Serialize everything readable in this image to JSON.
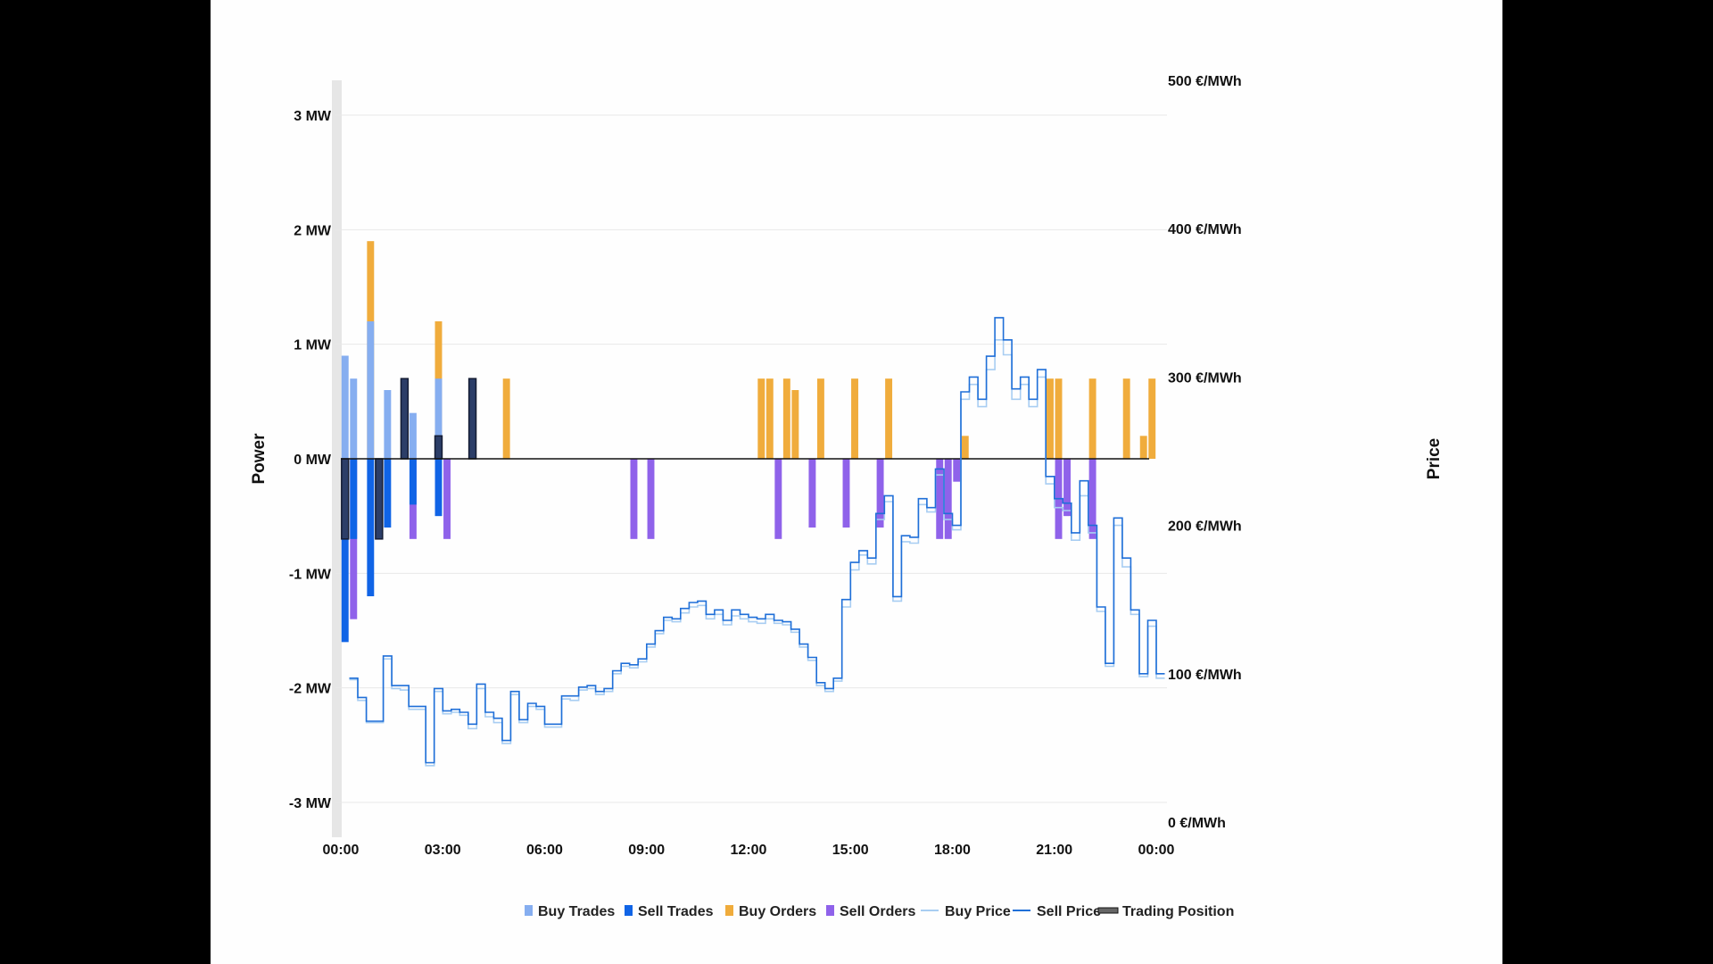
{
  "chart_data": {
    "type": "bar",
    "left_axis": {
      "title": "Power",
      "range": [
        -3,
        3
      ],
      "ticks": [
        3,
        2,
        1,
        0,
        -1,
        -2,
        -3
      ],
      "tick_labels": [
        "3 MW",
        "2 MW",
        "1 MW",
        "0 MW",
        "-1 MW",
        "-2 MW",
        "-3 MW"
      ]
    },
    "right_axis": {
      "title": "Price",
      "range": [
        0,
        500
      ],
      "ticks": [
        500,
        400,
        300,
        200,
        100,
        0
      ],
      "tick_labels": [
        "500 €/MWh",
        "400 €/MWh",
        "300 €/MWh",
        "200 €/MWh",
        "100 €/MWh",
        "0 €/MWh"
      ]
    },
    "x_axis": {
      "range_hours": [
        0,
        24
      ],
      "ticks": [
        0,
        3,
        6,
        9,
        12,
        15,
        18,
        21,
        24
      ],
      "tick_labels": [
        "00:00",
        "03:00",
        "06:00",
        "09:00",
        "12:00",
        "15:00",
        "18:00",
        "21:00",
        "00:00"
      ]
    },
    "grid": true,
    "legend_position": "bottom",
    "bar_width_hours": 0.25,
    "colors": {
      "buy_trades": "#86aef0",
      "sell_trades": "#1064e6",
      "buy_orders": "#f0ac3c",
      "sell_orders": "#8f62ea",
      "buy_price": "#a8cdf2",
      "sell_price": "#1f6fd8",
      "trading_position": "#2c3e68",
      "zero_line": "#111111",
      "grid": "#e8e8e8"
    },
    "legend": [
      {
        "key": "buy_trades",
        "label": "Buy Trades",
        "kind": "bar"
      },
      {
        "key": "sell_trades",
        "label": "Sell Trades",
        "kind": "bar"
      },
      {
        "key": "buy_orders",
        "label": "Buy Orders",
        "kind": "bar"
      },
      {
        "key": "sell_orders",
        "label": "Sell Orders",
        "kind": "bar"
      },
      {
        "key": "buy_price",
        "label": "Buy Price",
        "kind": "line"
      },
      {
        "key": "sell_price",
        "label": "Sell Price",
        "kind": "line"
      },
      {
        "key": "trading_position",
        "label": "Trading Position",
        "kind": "position"
      }
    ],
    "buy_trades": [
      {
        "t": 0.0,
        "v": 0.9
      },
      {
        "t": 0.25,
        "v": 0.7
      },
      {
        "t": 0.75,
        "v": 1.2
      },
      {
        "t": 1.25,
        "v": 0.6
      },
      {
        "t": 2.0,
        "v": 0.4
      },
      {
        "t": 2.75,
        "v": 0.7
      }
    ],
    "sell_trades": [
      {
        "t": 0.0,
        "v": -1.6
      },
      {
        "t": 0.25,
        "v": -0.7
      },
      {
        "t": 0.75,
        "v": -1.2
      },
      {
        "t": 1.25,
        "v": -0.6
      },
      {
        "t": 2.0,
        "v": -0.4
      },
      {
        "t": 2.75,
        "v": -0.5
      }
    ],
    "buy_orders": [
      {
        "t": 0.75,
        "v": 1.9
      },
      {
        "t": 2.75,
        "v": 1.2
      },
      {
        "t": 4.75,
        "v": 0.7
      },
      {
        "t": 12.25,
        "v": 0.7
      },
      {
        "t": 12.5,
        "v": 0.7
      },
      {
        "t": 13.0,
        "v": 0.7
      },
      {
        "t": 13.25,
        "v": 0.6
      },
      {
        "t": 14.0,
        "v": 0.7
      },
      {
        "t": 15.0,
        "v": 0.7
      },
      {
        "t": 16.0,
        "v": 0.7
      },
      {
        "t": 18.25,
        "v": 0.2
      },
      {
        "t": 20.75,
        "v": 0.7
      },
      {
        "t": 21.0,
        "v": 0.7
      },
      {
        "t": 22.0,
        "v": 0.7
      },
      {
        "t": 23.0,
        "v": 0.7
      },
      {
        "t": 23.5,
        "v": 0.2
      },
      {
        "t": 23.75,
        "v": 0.7
      }
    ],
    "sell_orders": [
      {
        "t": 0.25,
        "v": -1.4
      },
      {
        "t": 2.0,
        "v": -0.7
      },
      {
        "t": 3.0,
        "v": -0.7
      },
      {
        "t": 8.5,
        "v": -0.7
      },
      {
        "t": 9.0,
        "v": -0.7
      },
      {
        "t": 12.75,
        "v": -0.7
      },
      {
        "t": 13.75,
        "v": -0.6
      },
      {
        "t": 14.75,
        "v": -0.6
      },
      {
        "t": 15.75,
        "v": -0.6
      },
      {
        "t": 17.5,
        "v": -0.7
      },
      {
        "t": 17.75,
        "v": -0.7
      },
      {
        "t": 18.0,
        "v": -0.2
      },
      {
        "t": 21.0,
        "v": -0.7
      },
      {
        "t": 21.25,
        "v": -0.5
      },
      {
        "t": 22.0,
        "v": -0.7
      }
    ],
    "trading_position": [
      {
        "t": 0.0,
        "v": -0.7
      },
      {
        "t": 1.0,
        "v": -0.7
      },
      {
        "t": 1.75,
        "v": 0.7
      },
      {
        "t": 2.75,
        "v": 0.2
      },
      {
        "t": 3.75,
        "v": 0.7
      }
    ],
    "sell_price": {
      "start_hours": 0.25,
      "step_hours": 0.25,
      "values": [
        97,
        84,
        68,
        68,
        112,
        92,
        92,
        78,
        78,
        40,
        90,
        75,
        76,
        74,
        66,
        93,
        74,
        70,
        55,
        88,
        69,
        80,
        78,
        66,
        66,
        85,
        85,
        91,
        92,
        88,
        90,
        102,
        107,
        106,
        110,
        120,
        129,
        138,
        137,
        144,
        148,
        149,
        140,
        143,
        136,
        143,
        140,
        138,
        137,
        140,
        136,
        135,
        130,
        120,
        111,
        94,
        90,
        97,
        150,
        175,
        183,
        178,
        208,
        220,
        152,
        193,
        192,
        218,
        212,
        238,
        208,
        200,
        290,
        300,
        285,
        314,
        340,
        325,
        292,
        300,
        285,
        305,
        233,
        218,
        215,
        195,
        230,
        200,
        145,
        107,
        205,
        178,
        143,
        100,
        136,
        100
      ]
    },
    "buy_price": {
      "start_hours": 0.25,
      "step_hours": 0.25,
      "values": [
        96,
        82,
        67,
        67,
        110,
        90,
        89,
        76,
        76,
        38,
        88,
        73,
        74,
        72,
        63,
        90,
        71,
        67,
        53,
        86,
        67,
        78,
        76,
        64,
        64,
        83,
        82,
        89,
        90,
        86,
        88,
        100,
        105,
        104,
        108,
        118,
        127,
        136,
        135,
        141,
        145,
        146,
        137,
        140,
        133,
        139,
        137,
        135,
        134,
        137,
        134,
        133,
        128,
        118,
        109,
        92,
        88,
        95,
        145,
        170,
        180,
        174,
        204,
        216,
        149,
        189,
        188,
        214,
        209,
        234,
        204,
        197,
        285,
        295,
        280,
        305,
        325,
        315,
        285,
        295,
        280,
        300,
        228,
        212,
        210,
        190,
        220,
        195,
        142,
        105,
        200,
        172,
        140,
        98,
        132,
        97
      ]
    }
  }
}
